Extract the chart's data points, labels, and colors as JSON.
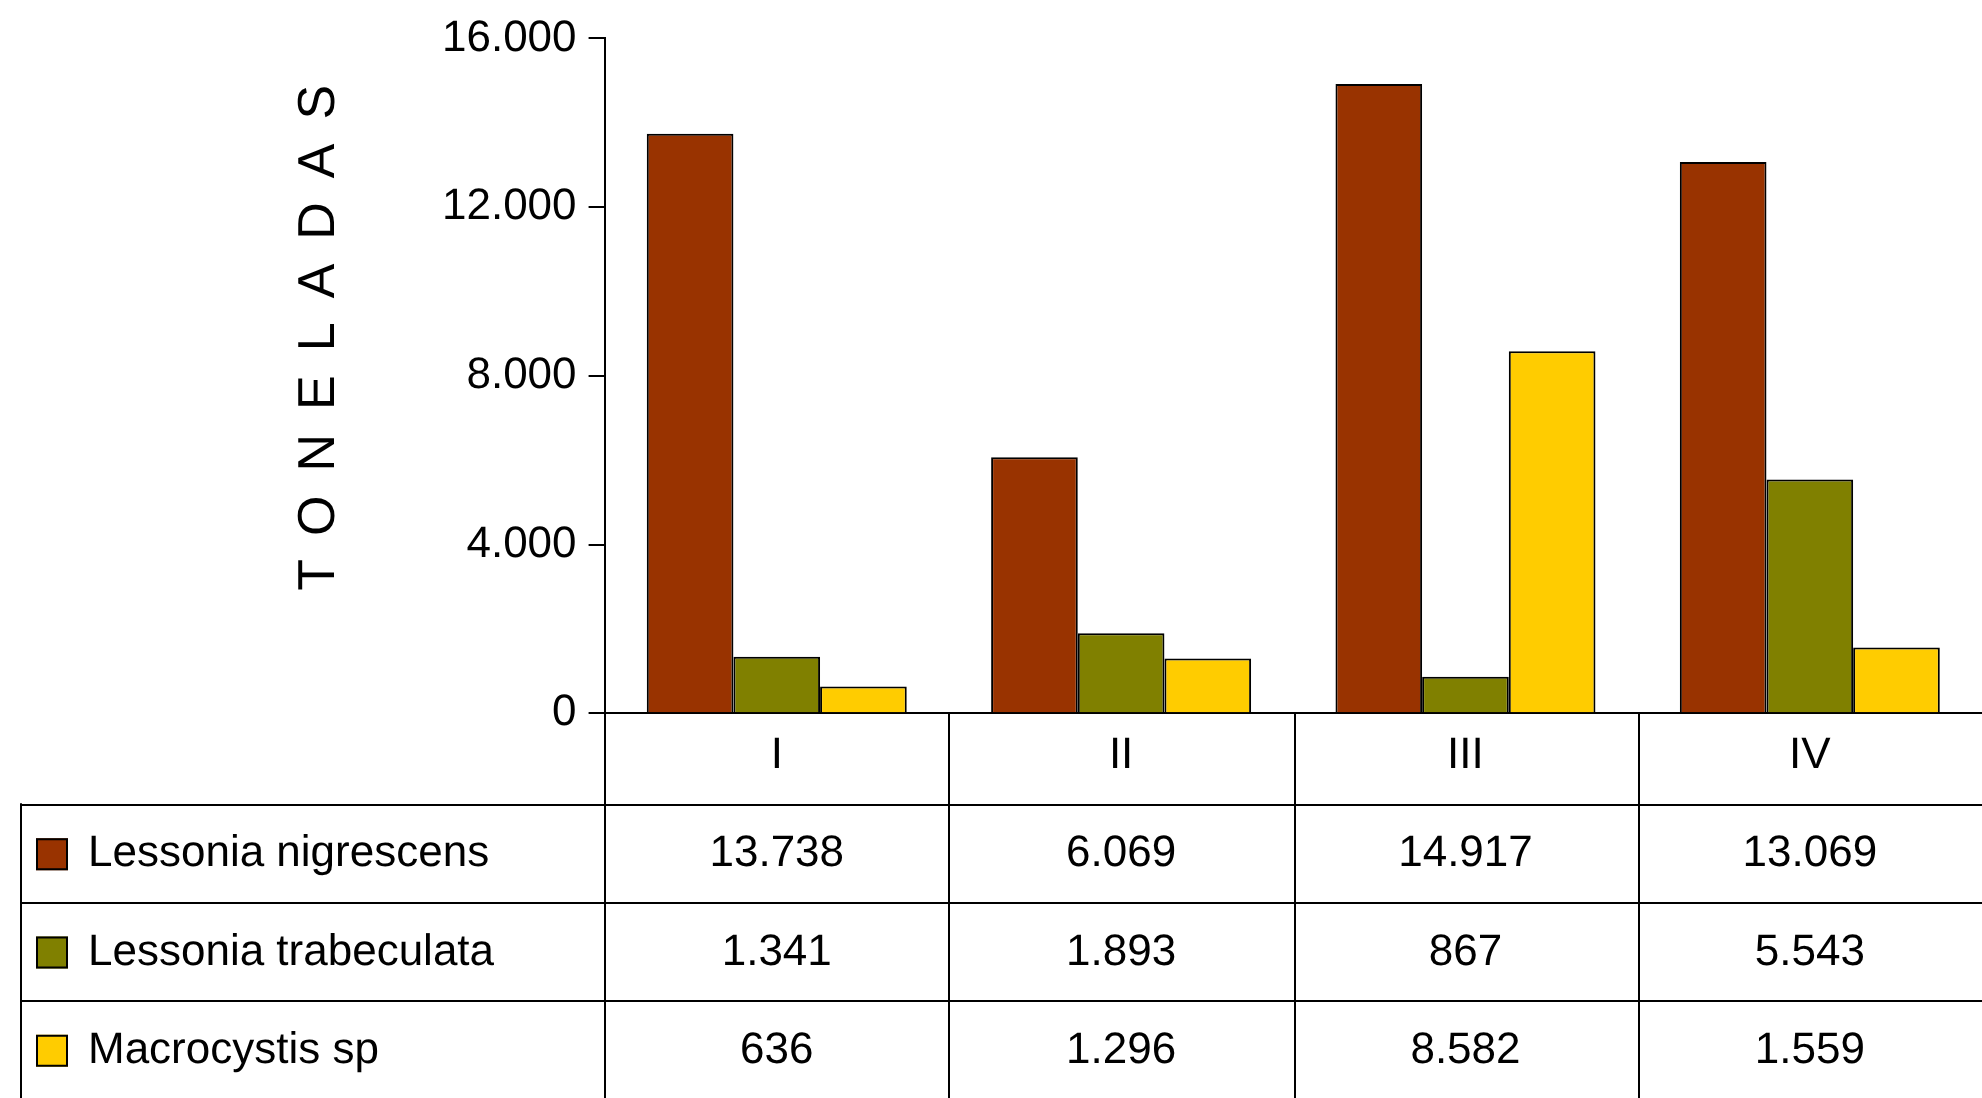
{
  "chart_data": {
    "type": "bar",
    "ylabel": "TONELADAS",
    "categories": [
      "I",
      "II",
      "III",
      "IV"
    ],
    "series": [
      {
        "name": "Lessonia nigrescens",
        "color": "#993300",
        "values": [
          13738,
          6069,
          14917,
          13069
        ],
        "value_labels": [
          "13.738",
          "6.069",
          "14.917",
          "13.069"
        ]
      },
      {
        "name": "Lessonia trabeculata",
        "color": "#808000",
        "values": [
          1341,
          1893,
          867,
          5543
        ],
        "value_labels": [
          "1.341",
          "1.893",
          "867",
          "5.543"
        ]
      },
      {
        "name": "Macrocystis sp",
        "color": "#ffcc00",
        "values": [
          636,
          1296,
          8582,
          1559
        ],
        "value_labels": [
          "636",
          "1.296",
          "8.582",
          "1.559"
        ]
      }
    ],
    "ylim": [
      0,
      16000
    ],
    "yticks": [
      {
        "value": 0,
        "label": "0"
      },
      {
        "value": 4000,
        "label": "4.000"
      },
      {
        "value": 8000,
        "label": "8.000"
      },
      {
        "value": 12000,
        "label": "12.000"
      },
      {
        "value": 16000,
        "label": "16.000"
      }
    ],
    "grid": false,
    "legend": "bottom"
  }
}
